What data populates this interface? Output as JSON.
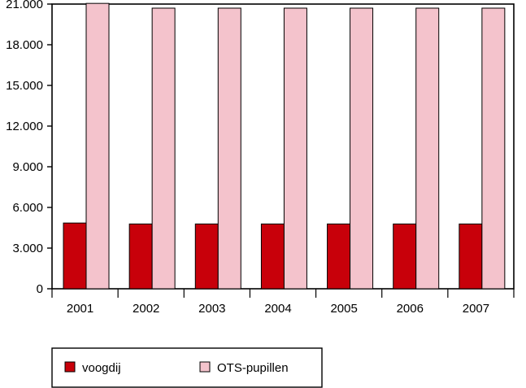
{
  "chart_data": {
    "type": "bar",
    "title": "",
    "xlabel": "",
    "ylabel": "",
    "categories": [
      "2001",
      "2002",
      "2003",
      "2004",
      "2005",
      "2006",
      "2007"
    ],
    "series": [
      {
        "name": "voogdij",
        "color": "#c8000a",
        "values": [
          4850,
          4780,
          4780,
          4780,
          4780,
          4780,
          4780
        ]
      },
      {
        "name": "OTS-pupillen",
        "color": "#f4c3cc",
        "values": [
          21050,
          20700,
          20700,
          20700,
          20700,
          20700,
          20700
        ]
      }
    ],
    "ylim": [
      0,
      21000
    ],
    "yticks": [
      0,
      3000,
      6000,
      9000,
      12000,
      15000,
      18000,
      21000
    ],
    "ytick_labels": [
      "0",
      "3.000",
      "6.000",
      "9.000",
      "12.000",
      "15.000",
      "18.000",
      "21.000"
    ],
    "grid": false,
    "legend_position": "bottom"
  }
}
